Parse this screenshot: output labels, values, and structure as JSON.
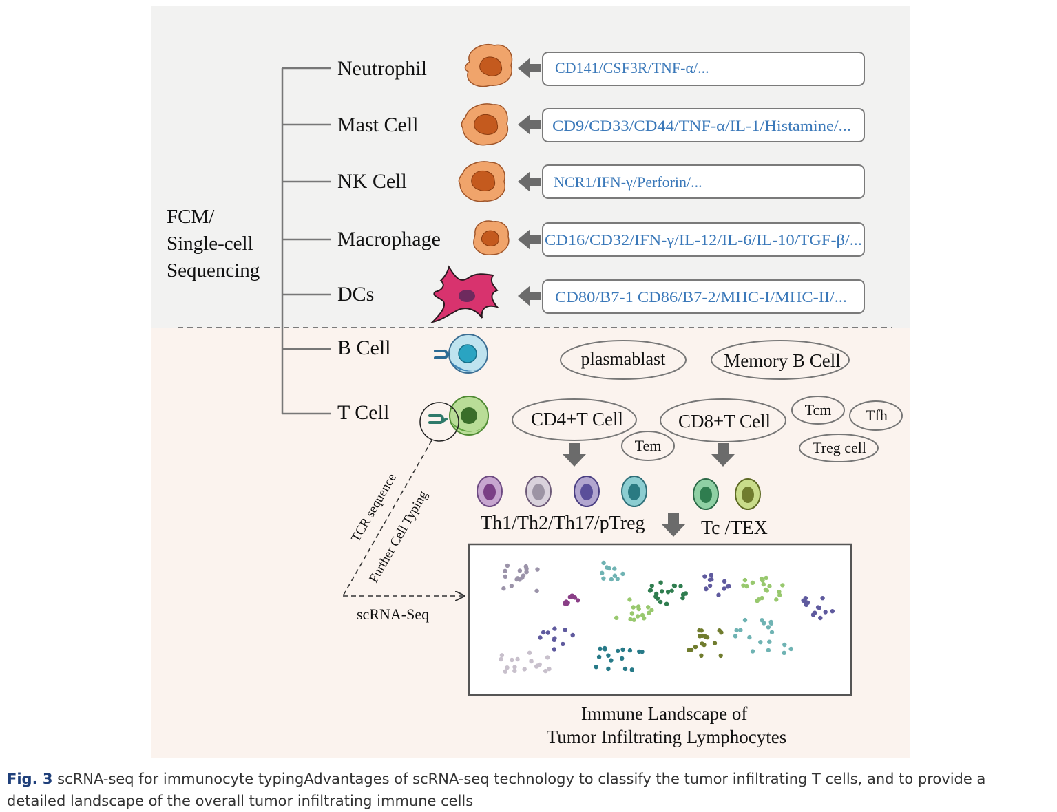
{
  "method_label": [
    "FCM/",
    "Single-cell",
    "Sequencing"
  ],
  "cell_types": [
    {
      "name": "Neutrophil",
      "markers": "CD141/CSF3R/TNF-α/..."
    },
    {
      "name": "Mast Cell",
      "markers": "CD9/CD33/CD44/TNF-α/IL-1/Histamine/..."
    },
    {
      "name": "NK Cell",
      "markers": "NCR1/IFN-γ/Perforin/..."
    },
    {
      "name": "Macrophage",
      "markers": "CD16/CD32/IFN-γ/IL-12/IL-6/IL-10/TGF-β/..."
    },
    {
      "name": "DCs",
      "markers": "CD80/B7-1 CD86/B7-2/MHC-I/MHC-II/..."
    },
    {
      "name": "B Cell"
    },
    {
      "name": "T Cell"
    }
  ],
  "b_subtypes": [
    "plasmablast",
    "Memory B Cell"
  ],
  "t_subtypes": {
    "cd4": "CD4+T Cell",
    "cd8": "CD8+T Cell",
    "tem": "Tem",
    "tcm": "Tcm",
    "tfh": "Tfh",
    "treg": "Treg cell"
  },
  "cd4_group_label": "Th1/Th2/Th17/pTreg",
  "cd8_group_label": "Tc /TEX",
  "dashed_labels": {
    "tcr": "TCR sequence",
    "further": "Further Cell Typing",
    "scrna": "scRNA-Seq"
  },
  "landscape_title": [
    "Immune Landscape of",
    "Tumor Infiltrating Lymphocytes"
  ],
  "colors": {
    "upper_bg": "#f2f2f1",
    "lower_bg": "#fbf3ee",
    "marker_text": "#3a78b9",
    "arrow": "#6b6b6b",
    "myeloid_cell": "#f0a46b",
    "dc_cell": "#d8336e",
    "b_cell": "#3fb2cf",
    "t_cell": "#7fb95a",
    "clusters": [
      "#9b93a9",
      "#8a3f87",
      "#5f5a9e",
      "#6fb3b3",
      "#98c86e",
      "#2f7d4f",
      "#277a88",
      "#707c2e",
      "#c8c0cc"
    ]
  },
  "caption": {
    "label": "Fig. 3",
    "text": "scRNA-seq for immunocyte typingAdvantages of scRNA-seq technology to classify the tumor infiltrating T cells, and to provide a detailed landscape of the overall tumor infiltrating immune cells"
  }
}
